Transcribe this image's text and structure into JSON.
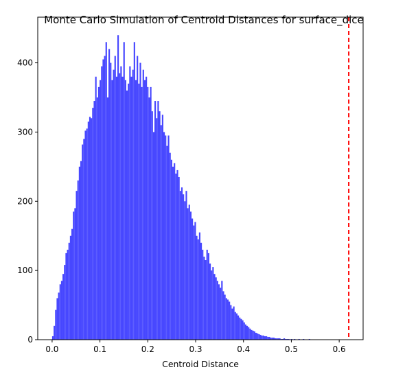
{
  "chart_data": {
    "type": "bar",
    "subtype": "histogram",
    "title": "Monte Carlo Simulation of Centroid Distances for surface_dice",
    "xlabel": "Centroid Distance",
    "ylabel": "",
    "xlim": [
      -0.03,
      0.65
    ],
    "ylim": [
      0,
      466
    ],
    "xticks": [
      0.0,
      0.1,
      0.2,
      0.3,
      0.4,
      0.5,
      0.6
    ],
    "xtick_labels": [
      "0.0",
      "0.1",
      "0.2",
      "0.3",
      "0.4",
      "0.5",
      "0.6"
    ],
    "yticks": [
      0,
      100,
      200,
      300,
      400
    ],
    "ytick_labels": [
      "0",
      "100",
      "200",
      "300",
      "400"
    ],
    "grid": false,
    "legend": "none",
    "bar_color": "#4747ff",
    "bin_start": 0.0,
    "bin_width": 0.0031,
    "counts": [
      5,
      20,
      43,
      60,
      68,
      80,
      85,
      95,
      108,
      125,
      130,
      140,
      150,
      160,
      185,
      190,
      215,
      230,
      250,
      258,
      282,
      290,
      302,
      305,
      315,
      322,
      320,
      335,
      345,
      380,
      350,
      365,
      375,
      395,
      405,
      410,
      430,
      350,
      420,
      400,
      375,
      390,
      410,
      380,
      440,
      385,
      395,
      380,
      430,
      375,
      360,
      370,
      395,
      380,
      390,
      430,
      375,
      410,
      370,
      400,
      365,
      390,
      375,
      380,
      365,
      350,
      365,
      330,
      300,
      345,
      320,
      345,
      330,
      310,
      325,
      300,
      295,
      280,
      295,
      270,
      260,
      250,
      255,
      240,
      245,
      235,
      215,
      220,
      210,
      200,
      215,
      190,
      195,
      185,
      175,
      165,
      170,
      150,
      145,
      155,
      140,
      130,
      120,
      115,
      130,
      125,
      110,
      100,
      105,
      95,
      90,
      85,
      80,
      75,
      85,
      70,
      65,
      60,
      58,
      55,
      50,
      45,
      48,
      40,
      38,
      35,
      32,
      30,
      28,
      25,
      22,
      20,
      18,
      16,
      14,
      13,
      12,
      10,
      9,
      8,
      7,
      6,
      6,
      5,
      5,
      4,
      4,
      3,
      3,
      3,
      2,
      2,
      2,
      2,
      1,
      1,
      2,
      1,
      1,
      1,
      0,
      1,
      0,
      1,
      0,
      0,
      1,
      0,
      0,
      1,
      0,
      0,
      0,
      1,
      0,
      0,
      0,
      0,
      0,
      0,
      0,
      0,
      0,
      0,
      0,
      0,
      0,
      0,
      0,
      0,
      0,
      0,
      0
    ],
    "reference_line": {
      "x": 0.62,
      "style": "dashed",
      "color": "#ff0000"
    }
  }
}
